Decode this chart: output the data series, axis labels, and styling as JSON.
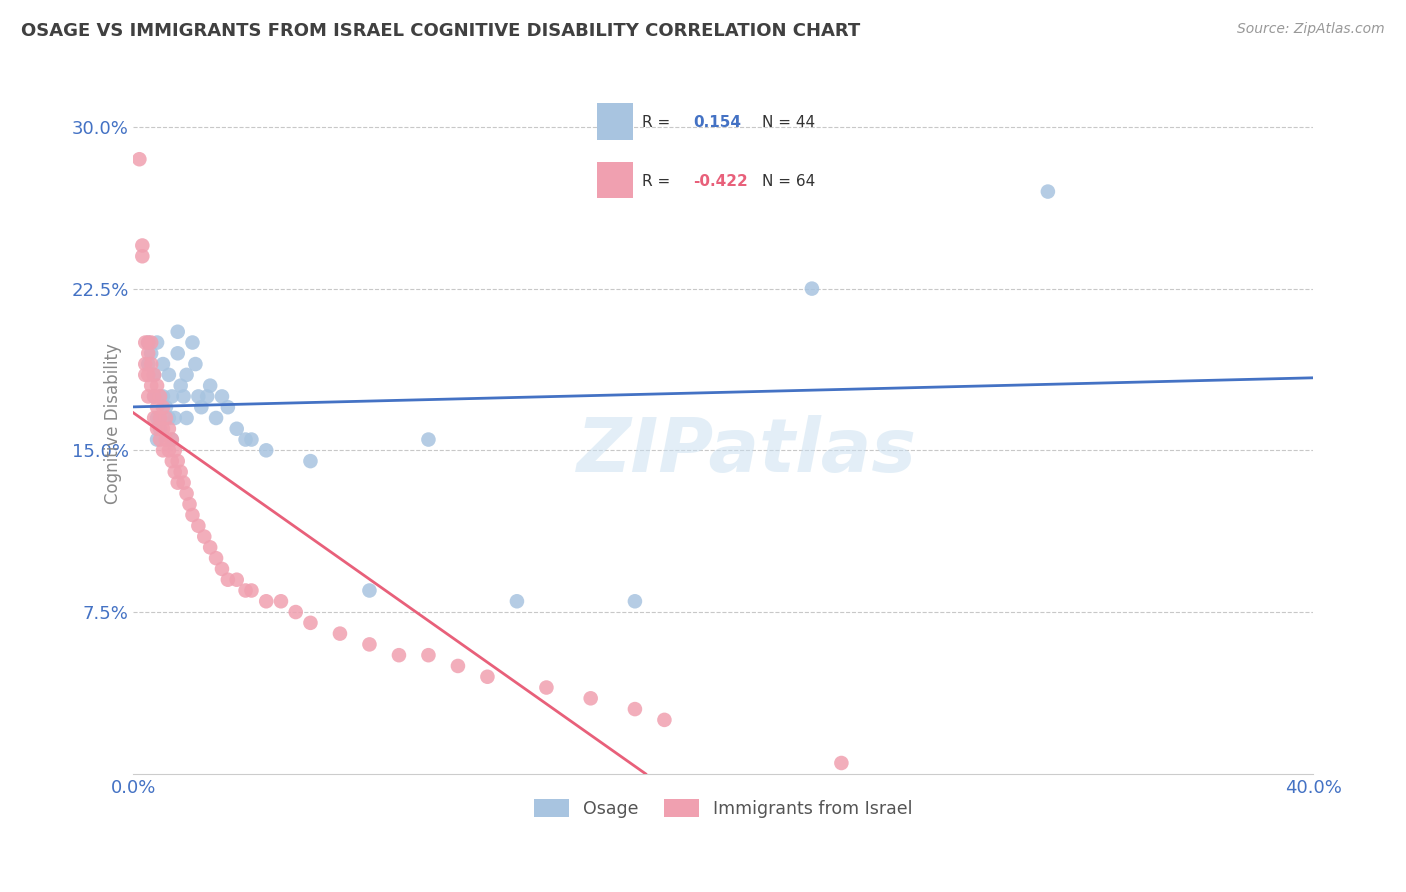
{
  "title": "OSAGE VS IMMIGRANTS FROM ISRAEL COGNITIVE DISABILITY CORRELATION CHART",
  "source": "Source: ZipAtlas.com",
  "ylabel": "Cognitive Disability",
  "yticks": [
    0.0,
    0.075,
    0.15,
    0.225,
    0.3
  ],
  "ytick_labels": [
    "",
    "7.5%",
    "15.0%",
    "22.5%",
    "30.0%"
  ],
  "xlim": [
    0.0,
    0.4
  ],
  "ylim": [
    0.0,
    0.325
  ],
  "watermark": "ZIPatlas",
  "osage_color": "#a8c4e0",
  "israel_color": "#f0a0b0",
  "osage_line_color": "#4472c4",
  "israel_line_color": "#e8607a",
  "background_color": "#ffffff",
  "grid_color": "#c8c8c8",
  "title_color": "#404040",
  "axis_label_color": "#4472c4",
  "osage_x": [
    0.005,
    0.005,
    0.006,
    0.007,
    0.007,
    0.008,
    0.008,
    0.008,
    0.009,
    0.009,
    0.01,
    0.01,
    0.011,
    0.012,
    0.012,
    0.013,
    0.013,
    0.014,
    0.015,
    0.015,
    0.016,
    0.017,
    0.018,
    0.018,
    0.02,
    0.021,
    0.022,
    0.023,
    0.025,
    0.026,
    0.028,
    0.03,
    0.032,
    0.035,
    0.038,
    0.04,
    0.045,
    0.06,
    0.08,
    0.1,
    0.13,
    0.17,
    0.23,
    0.31
  ],
  "osage_y": [
    0.2,
    0.19,
    0.195,
    0.185,
    0.175,
    0.2,
    0.165,
    0.155,
    0.175,
    0.16,
    0.19,
    0.175,
    0.17,
    0.185,
    0.165,
    0.175,
    0.155,
    0.165,
    0.205,
    0.195,
    0.18,
    0.175,
    0.185,
    0.165,
    0.2,
    0.19,
    0.175,
    0.17,
    0.175,
    0.18,
    0.165,
    0.175,
    0.17,
    0.16,
    0.155,
    0.155,
    0.15,
    0.145,
    0.085,
    0.155,
    0.08,
    0.08,
    0.225,
    0.27
  ],
  "israel_x": [
    0.002,
    0.003,
    0.003,
    0.004,
    0.004,
    0.004,
    0.005,
    0.005,
    0.005,
    0.005,
    0.006,
    0.006,
    0.006,
    0.007,
    0.007,
    0.007,
    0.008,
    0.008,
    0.008,
    0.009,
    0.009,
    0.009,
    0.01,
    0.01,
    0.01,
    0.011,
    0.011,
    0.012,
    0.012,
    0.013,
    0.013,
    0.014,
    0.014,
    0.015,
    0.015,
    0.016,
    0.017,
    0.018,
    0.019,
    0.02,
    0.022,
    0.024,
    0.026,
    0.028,
    0.03,
    0.032,
    0.035,
    0.038,
    0.04,
    0.045,
    0.05,
    0.055,
    0.06,
    0.07,
    0.08,
    0.09,
    0.1,
    0.11,
    0.12,
    0.14,
    0.155,
    0.17,
    0.18,
    0.24
  ],
  "israel_y": [
    0.285,
    0.245,
    0.24,
    0.2,
    0.19,
    0.185,
    0.2,
    0.195,
    0.185,
    0.175,
    0.2,
    0.19,
    0.18,
    0.185,
    0.175,
    0.165,
    0.18,
    0.17,
    0.16,
    0.175,
    0.165,
    0.155,
    0.17,
    0.16,
    0.15,
    0.165,
    0.155,
    0.16,
    0.15,
    0.155,
    0.145,
    0.15,
    0.14,
    0.145,
    0.135,
    0.14,
    0.135,
    0.13,
    0.125,
    0.12,
    0.115,
    0.11,
    0.105,
    0.1,
    0.095,
    0.09,
    0.09,
    0.085,
    0.085,
    0.08,
    0.08,
    0.075,
    0.07,
    0.065,
    0.06,
    0.055,
    0.055,
    0.05,
    0.045,
    0.04,
    0.035,
    0.03,
    0.025,
    0.005
  ]
}
